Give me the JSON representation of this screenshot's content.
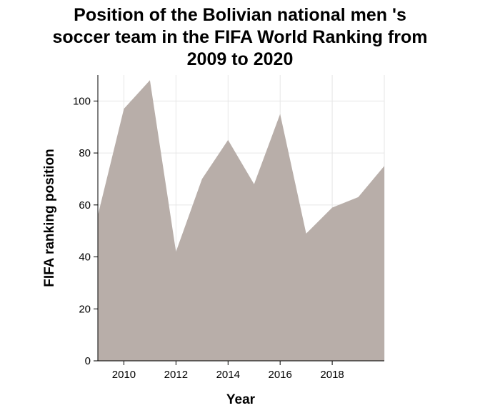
{
  "chart_data": {
    "type": "area",
    "title_lines": [
      "Position of the Bolivian national men 's",
      "soccer team in the FIFA World Ranking from",
      "2009 to 2020"
    ],
    "xlabel": "Year",
    "ylabel": "FIFA ranking position",
    "x": [
      2009,
      2010,
      2011,
      2012,
      2013,
      2014,
      2015,
      2016,
      2017,
      2018,
      2019,
      2020
    ],
    "series": [
      {
        "values": [
          56,
          97,
          108,
          42,
          70,
          85,
          68,
          95,
          49,
          59,
          63,
          75
        ]
      }
    ],
    "xlim": [
      2009,
      2020
    ],
    "ylim": [
      0,
      110
    ],
    "xticks": [
      2010,
      2012,
      2014,
      2016,
      2018
    ],
    "yticks": [
      0,
      20,
      40,
      60,
      80,
      100
    ],
    "fill_color": "#b8aea9",
    "grid_color": "#e6e6e6",
    "grid": true
  }
}
